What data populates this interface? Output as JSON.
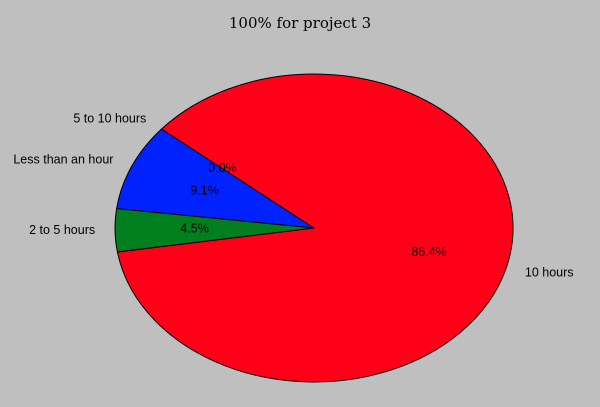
{
  "chart_data": {
    "type": "pie",
    "title": "100% for project 3",
    "start_angle_deg": 140,
    "direction": "counterclockwise",
    "slices": [
      {
        "label": "5 to 10 hours",
        "pct_label": "0.0%",
        "value": 0.0,
        "color": "#ffff00"
      },
      {
        "label": "Less than an hour",
        "pct_label": "9.1%",
        "value": 9.1,
        "color": "#0022ff"
      },
      {
        "label": "2 to 5 hours",
        "pct_label": "4.5%",
        "value": 4.5,
        "color": "#007f1f"
      },
      {
        "label": "10 hours",
        "pct_label": "86.4%",
        "value": 86.4,
        "color": "#ff0018"
      }
    ]
  }
}
